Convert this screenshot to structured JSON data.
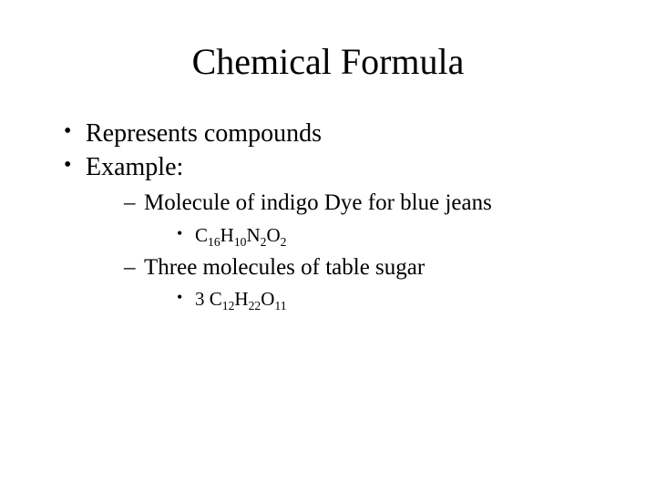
{
  "slide": {
    "title": "Chemical Formula",
    "title_fontsize": 40,
    "body_fontsize_l1": 28,
    "body_fontsize_l2": 25,
    "body_fontsize_l3": 21,
    "background_color": "#ffffff",
    "text_color": "#000000",
    "font_family": "Times New Roman",
    "bullets": [
      {
        "text": "Represents compounds"
      },
      {
        "text": "Example:",
        "children": [
          {
            "text": "Molecule of indigo Dye for blue jeans",
            "children": [
              {
                "formula": {
                  "prefix": "",
                  "parts": [
                    {
                      "el": "C",
                      "n": "16"
                    },
                    {
                      "el": "H",
                      "n": "10"
                    },
                    {
                      "el": "N",
                      "n": "2"
                    },
                    {
                      "el": "O",
                      "n": "2"
                    }
                  ]
                }
              }
            ]
          },
          {
            "text": "Three molecules of table sugar",
            "children": [
              {
                "formula": {
                  "prefix": "3",
                  "parts": [
                    {
                      "el": "C",
                      "n": "12"
                    },
                    {
                      "el": "H",
                      "n": "22"
                    },
                    {
                      "el": "O",
                      "n": "11"
                    }
                  ]
                }
              }
            ]
          }
        ]
      }
    ]
  }
}
